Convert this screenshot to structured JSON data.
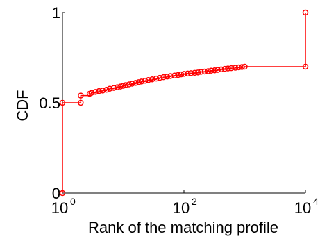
{
  "chart_data": {
    "type": "line",
    "xscale": "log",
    "xlim": [
      1,
      10000
    ],
    "ylim": [
      0,
      1
    ],
    "xlabel": "Rank of the matching profile",
    "ylabel": "CDF",
    "x_ticks": [
      {
        "value": 1,
        "base": "10",
        "exp": "0"
      },
      {
        "value": 100,
        "base": "10",
        "exp": "2"
      },
      {
        "value": 10000,
        "base": "10",
        "exp": "4"
      }
    ],
    "y_ticks": [
      {
        "value": 0,
        "label": "0"
      },
      {
        "value": 0.5,
        "label": "0.5"
      },
      {
        "value": 1,
        "label": "1"
      }
    ],
    "grid": false,
    "series": [
      {
        "color": "#ff0000",
        "step": true,
        "marker": "circle",
        "x": [
          1,
          1,
          2,
          2,
          2.8,
          3,
          3.5,
          4,
          4.6,
          5.3,
          6,
          7,
          8,
          9,
          10,
          11,
          12.5,
          14,
          16,
          18,
          20,
          23,
          26,
          30,
          35,
          40,
          46,
          53,
          60,
          70,
          80,
          90,
          100,
          115,
          130,
          150,
          170,
          190,
          220,
          250,
          280,
          320,
          360,
          410,
          470,
          530,
          600,
          700,
          800,
          900,
          1000,
          10000,
          10000
        ],
        "y": [
          0,
          0.5,
          0.5,
          0.54,
          0.55,
          0.555,
          0.56,
          0.565,
          0.568,
          0.572,
          0.578,
          0.582,
          0.586,
          0.59,
          0.594,
          0.598,
          0.602,
          0.606,
          0.61,
          0.614,
          0.618,
          0.622,
          0.626,
          0.63,
          0.634,
          0.638,
          0.642,
          0.645,
          0.648,
          0.651,
          0.654,
          0.657,
          0.66,
          0.662,
          0.664,
          0.666,
          0.668,
          0.671,
          0.673,
          0.675,
          0.678,
          0.68,
          0.682,
          0.685,
          0.688,
          0.69,
          0.692,
          0.694,
          0.696,
          0.698,
          0.7,
          0.7,
          1.0
        ]
      }
    ]
  }
}
